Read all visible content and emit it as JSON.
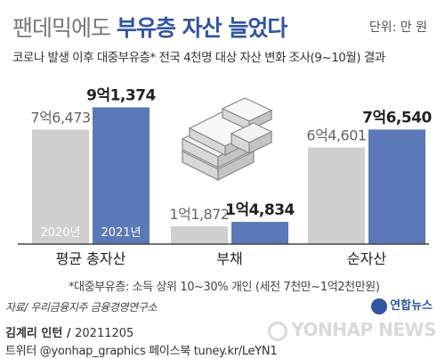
{
  "header": {
    "title_light": "팬데믹에도 ",
    "title_bold": "부유층 자산 늘었다",
    "unit": "단위: 만 원",
    "subtitle": "코로나 발생 이후 대중부유층* 전국 4천명 대상 자산 변화 조사(9~10월) 결과"
  },
  "colors": {
    "year2020": "#cfcfcf",
    "year2021": "#5b79b8",
    "title_accent": "#2f55a4",
    "baseline": "#444444"
  },
  "chart_data": {
    "type": "bar",
    "categories": [
      "평균 총자산",
      "부채",
      "순자산"
    ],
    "series": [
      {
        "name": "2020년",
        "values": [
          76473,
          11872,
          64601
        ]
      },
      {
        "name": "2021년",
        "values": [
          91374,
          14834,
          76540
        ]
      }
    ],
    "value_labels": [
      [
        "7억6,473",
        "1억1,872",
        "6억4,601"
      ],
      [
        "9억1,374",
        "1억4,834",
        "7억6,540"
      ]
    ],
    "ylim": [
      0,
      100000
    ],
    "legend": "inside-bars"
  },
  "footnote": "*대중부유층: 소득 상위 10~30% 개인 (세전 7천만~1억2천만원)",
  "source": "자료/ 우리금융지주 금융경영연구소",
  "brand": "연합뉴스",
  "credit": {
    "author": "김계리 인턴",
    "date": "20211205"
  },
  "social": "트위터 @yonhap_graphics  페이스북 tuney.kr/LeYN1",
  "watermark": "YONHAP NEWS"
}
